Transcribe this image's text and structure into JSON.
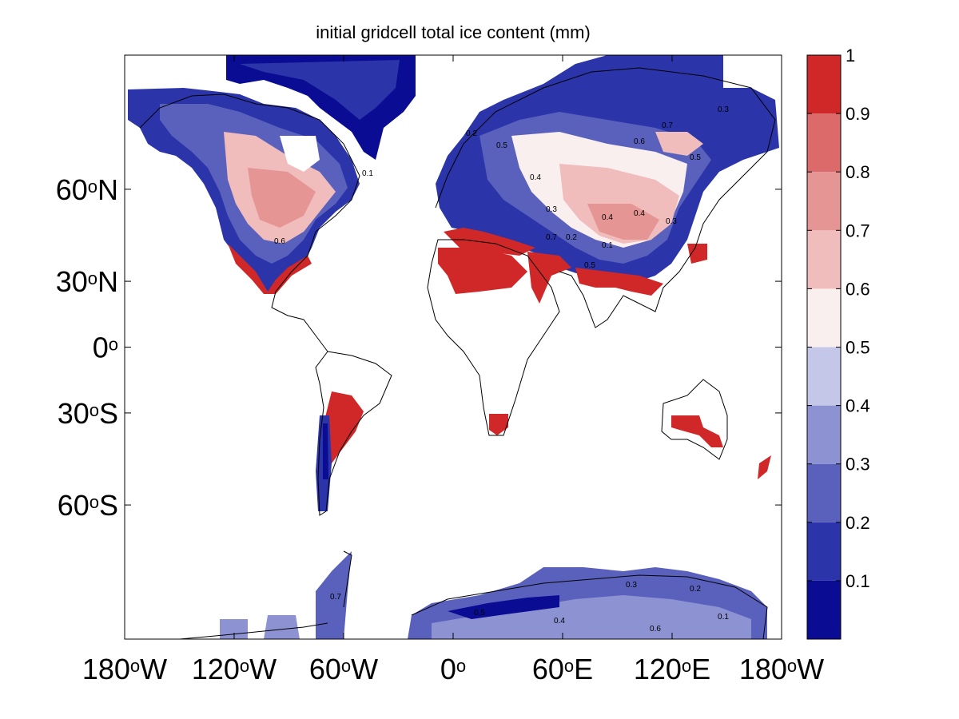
{
  "title": "initial gridcell total ice content (mm)",
  "map": {
    "projection": "mercator",
    "lon_range": [
      -180,
      180
    ],
    "lat_range": [
      -80,
      80
    ],
    "x_ticks": [
      {
        "lon": -180,
        "deg": "180",
        "hemi": "W"
      },
      {
        "lon": -120,
        "deg": "120",
        "hemi": "W"
      },
      {
        "lon": -60,
        "deg": "60",
        "hemi": "W"
      },
      {
        "lon": 0,
        "deg": "0",
        "hemi": ""
      },
      {
        "lon": 60,
        "deg": "60",
        "hemi": "E"
      },
      {
        "lon": 120,
        "deg": "120",
        "hemi": "E"
      },
      {
        "lon": 180,
        "deg": "180",
        "hemi": "W"
      }
    ],
    "y_ticks": [
      {
        "lat": 60,
        "deg": "60",
        "hemi": "N"
      },
      {
        "lat": 30,
        "deg": "30",
        "hemi": "N"
      },
      {
        "lat": 0,
        "deg": "0",
        "hemi": ""
      },
      {
        "lat": -30,
        "deg": "30",
        "hemi": "S"
      },
      {
        "lat": -60,
        "deg": "60",
        "hemi": "S"
      }
    ],
    "contour_labels": [
      "0.5",
      "0.4",
      "0.3",
      "0.2",
      "0.1",
      "0.6",
      "0.7"
    ]
  },
  "colorbar": {
    "min": 0,
    "max": 1,
    "bands": [
      {
        "from": 0.0,
        "to": 0.1,
        "color": "#0a0d94"
      },
      {
        "from": 0.1,
        "to": 0.2,
        "color": "#2b34a8"
      },
      {
        "from": 0.2,
        "to": 0.3,
        "color": "#5a61bd"
      },
      {
        "from": 0.3,
        "to": 0.4,
        "color": "#8d92d2"
      },
      {
        "from": 0.4,
        "to": 0.5,
        "color": "#c5c7e8"
      },
      {
        "from": 0.5,
        "to": 0.6,
        "color": "#faefef"
      },
      {
        "from": 0.6,
        "to": 0.7,
        "color": "#f0bcbc"
      },
      {
        "from": 0.7,
        "to": 0.8,
        "color": "#e69595"
      },
      {
        "from": 0.8,
        "to": 0.9,
        "color": "#dc6a6a"
      },
      {
        "from": 0.9,
        "to": 1.0,
        "color": "#d02828"
      }
    ],
    "tick_labels": [
      "0.1",
      "0.2",
      "0.3",
      "0.4",
      "0.5",
      "0.6",
      "0.7",
      "0.8",
      "0.9",
      "1"
    ]
  }
}
